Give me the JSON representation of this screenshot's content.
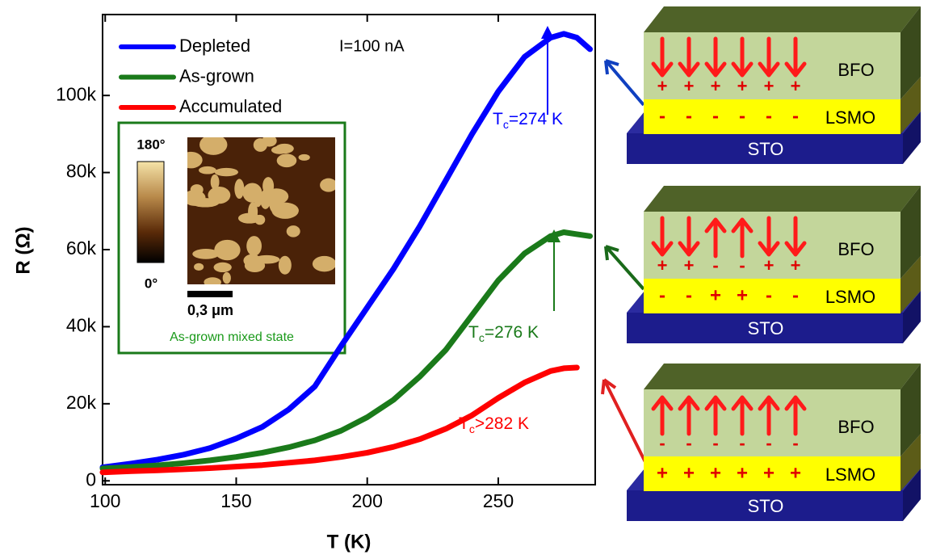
{
  "chart_data": {
    "type": "line",
    "xlabel": "T (K)",
    "ylabel": "R (Ω)",
    "xlim": [
      99,
      287
    ],
    "ylim": [
      -1000,
      121000
    ],
    "xticks": [
      100,
      150,
      200,
      250
    ],
    "yticks": [
      0,
      {
        "value": 20000,
        "label": "20k"
      },
      {
        "value": 40000,
        "label": "40k"
      },
      {
        "value": 60000,
        "label": "60k"
      },
      {
        "value": 80000,
        "label": "80k"
      },
      {
        "value": 100000,
        "label": "100k"
      }
    ],
    "x": [
      99,
      110,
      120,
      130,
      140,
      150,
      160,
      170,
      180,
      190,
      200,
      210,
      220,
      230,
      240,
      250,
      260,
      270,
      275,
      280,
      285
    ],
    "series": [
      {
        "name": "Depleted",
        "color": "#0000ff",
        "values": [
          3500,
          4500,
          5500,
          6800,
          8500,
          11000,
          14000,
          18500,
          24500,
          35000,
          45000,
          55000,
          66000,
          78000,
          90000,
          101000,
          110000,
          115000,
          116000,
          115000,
          112000
        ]
      },
      {
        "name": "As-grown",
        "color": "#1a7a1a",
        "values": [
          3200,
          3600,
          4000,
          4600,
          5300,
          6200,
          7300,
          8700,
          10500,
          13000,
          16500,
          21000,
          27000,
          34000,
          43000,
          52000,
          59000,
          63500,
          64500,
          64000,
          63500
        ]
      },
      {
        "name": "Accumulated",
        "color": "#ff0000",
        "values": [
          2200,
          2500,
          2700,
          3000,
          3300,
          3700,
          4100,
          4700,
          5300,
          6200,
          7300,
          8800,
          10800,
          13500,
          17000,
          21500,
          25500,
          28500,
          29200,
          29400,
          null
        ]
      }
    ],
    "annotations": {
      "current": "I=100 nA",
      "tc": [
        {
          "main": "T",
          "subscript": "c",
          "suffix": "=274 K",
          "color": "#0000ff"
        },
        {
          "main": "T",
          "subscript": "c",
          "suffix": "=276 K",
          "color": "#1a7a1a"
        },
        {
          "main": "T",
          "subscript": "c",
          "suffix": ">282 K",
          "color": "#ff0000"
        }
      ]
    },
    "inset": {
      "scale_top": "180°",
      "scale_bottom": "0°",
      "scale_bar": "0,3 μm",
      "caption": "As-grown mixed state"
    }
  },
  "diagrams": [
    {
      "bfo": "BFO",
      "lsmo": "LSMO",
      "sto": "STO",
      "bfo_signs": [
        "+",
        "+",
        "+",
        "+",
        "+",
        "+"
      ],
      "lsmo_signs": [
        "-",
        "-",
        "-",
        "-",
        "-",
        "-"
      ]
    },
    {
      "bfo": "BFO",
      "lsmo": "LSMO",
      "sto": "STO",
      "bfo_signs": [
        "+",
        "+",
        "-",
        "-",
        "+",
        "+"
      ],
      "lsmo_signs": [
        "-",
        "-",
        "+",
        "+",
        "-",
        "-"
      ]
    },
    {
      "bfo": "BFO",
      "lsmo": "LSMO",
      "sto": "STO",
      "bfo_signs": [
        "-",
        "-",
        "-",
        "-",
        "-",
        "-"
      ],
      "lsmo_signs": [
        "+",
        "+",
        "+",
        "+",
        "+",
        "+"
      ]
    }
  ]
}
